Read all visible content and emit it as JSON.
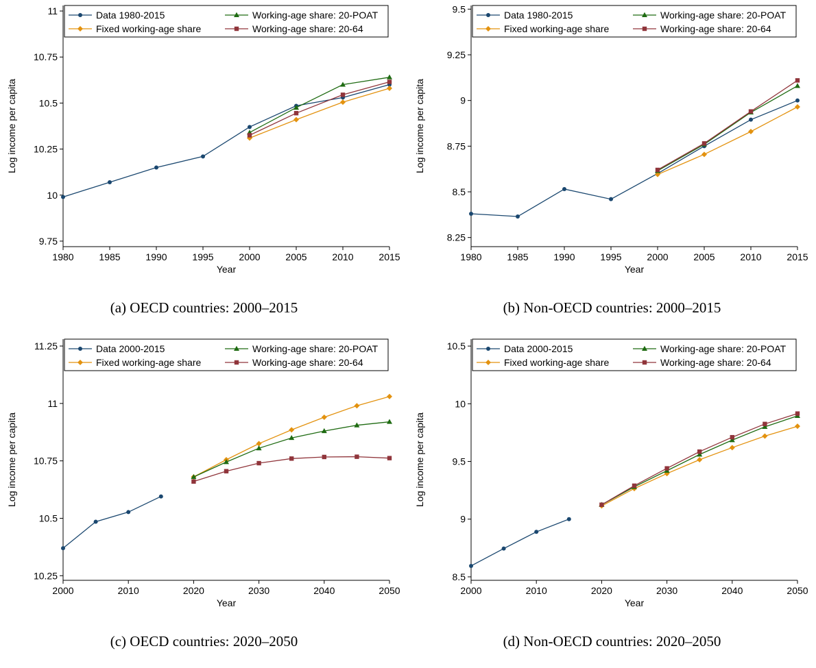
{
  "chart_data": [
    {
      "type": "line",
      "caption": "(a) OECD countries: 2000–2015",
      "xlabel": "Year",
      "ylabel": "Log income per capita",
      "xlim": [
        1980,
        2015
      ],
      "ylim": [
        9.72,
        11.03
      ],
      "xticks": [
        1980,
        1985,
        1990,
        1995,
        2000,
        2005,
        2010,
        2015
      ],
      "yticks": [
        9.75,
        10,
        10.25,
        10.5,
        10.75,
        11
      ],
      "ytick_labels": [
        "9.75",
        "10",
        "10.25",
        "10.5",
        "10.75",
        "11"
      ],
      "legend": "top, two columns",
      "series": [
        {
          "name": "Data 1980-2015",
          "color": "#1a476f",
          "marker": "circle",
          "x": [
            1980,
            1985,
            1990,
            1995,
            2000,
            2005,
            2010,
            2015
          ],
          "values": [
            9.99,
            10.07,
            10.15,
            10.21,
            10.37,
            10.485,
            10.53,
            10.6
          ]
        },
        {
          "name": "Fixed working-age share",
          "color": "#e3920f",
          "marker": "diamond",
          "x": [
            2000,
            2005,
            2010,
            2015
          ],
          "values": [
            10.31,
            10.41,
            10.505,
            10.58
          ]
        },
        {
          "name": "Working-age share: 20-POAT",
          "color": "#1f6b12",
          "marker": "triangle",
          "x": [
            2000,
            2005,
            2010,
            2015
          ],
          "values": [
            10.34,
            10.475,
            10.6,
            10.64
          ]
        },
        {
          "name": "Working-age share: 20-64",
          "color": "#90353b",
          "marker": "square",
          "x": [
            2000,
            2005,
            2010,
            2015
          ],
          "values": [
            10.325,
            10.445,
            10.545,
            10.615
          ]
        }
      ]
    },
    {
      "type": "line",
      "caption": "(b) Non-OECD countries: 2000–2015",
      "xlabel": "Year",
      "ylabel": "Log income per capita",
      "xlim": [
        1980,
        2015
      ],
      "ylim": [
        8.2,
        9.52
      ],
      "xticks": [
        1980,
        1985,
        1990,
        1995,
        2000,
        2005,
        2010,
        2015
      ],
      "yticks": [
        8.25,
        8.5,
        8.75,
        9,
        9.25,
        9.5
      ],
      "ytick_labels": [
        "8.25",
        "8.5",
        "8.75",
        "9",
        "9.25",
        "9.5"
      ],
      "legend": "top, two columns",
      "series": [
        {
          "name": "Data 1980-2015",
          "color": "#1a476f",
          "marker": "circle",
          "x": [
            1980,
            1985,
            1990,
            1995,
            2000,
            2005,
            2010,
            2015
          ],
          "values": [
            8.38,
            8.365,
            8.515,
            8.46,
            8.6,
            8.75,
            8.895,
            9.0
          ]
        },
        {
          "name": "Fixed working-age share",
          "color": "#e3920f",
          "marker": "diamond",
          "x": [
            2000,
            2005,
            2010,
            2015
          ],
          "values": [
            8.595,
            8.705,
            8.83,
            8.965
          ]
        },
        {
          "name": "Working-age share: 20-POAT",
          "color": "#1f6b12",
          "marker": "triangle",
          "x": [
            2000,
            2005,
            2010,
            2015
          ],
          "values": [
            8.615,
            8.76,
            8.935,
            9.08
          ]
        },
        {
          "name": "Working-age share: 20-64",
          "color": "#90353b",
          "marker": "square",
          "x": [
            2000,
            2005,
            2010,
            2015
          ],
          "values": [
            8.62,
            8.765,
            8.94,
            9.11
          ]
        }
      ]
    },
    {
      "type": "line",
      "caption": "(c) OECD countries: 2020–2050",
      "xlabel": "Year",
      "ylabel": "Log income per capita",
      "xlim": [
        2000,
        2050
      ],
      "ylim": [
        10.23,
        11.28
      ],
      "xticks": [
        2000,
        2010,
        2020,
        2030,
        2040,
        2050
      ],
      "yticks": [
        10.25,
        10.5,
        10.75,
        11,
        11.25
      ],
      "ytick_labels": [
        "10.25",
        "10.5",
        "10.75",
        "11",
        "11.25"
      ],
      "legend": "top, two columns",
      "series": [
        {
          "name": "Data 2000-2015",
          "color": "#1a476f",
          "marker": "circle",
          "x": [
            2000,
            2005,
            2010,
            2015
          ],
          "values": [
            10.37,
            10.485,
            10.527,
            10.595
          ]
        },
        {
          "name": "Fixed working-age share",
          "color": "#e3920f",
          "marker": "diamond",
          "x": [
            2020,
            2025,
            2030,
            2035,
            2040,
            2045,
            2050
          ],
          "values": [
            10.68,
            10.755,
            10.825,
            10.885,
            10.94,
            10.99,
            11.03
          ]
        },
        {
          "name": "Working-age share: 20-POAT",
          "color": "#1f6b12",
          "marker": "triangle",
          "x": [
            2020,
            2025,
            2030,
            2035,
            2040,
            2045,
            2050
          ],
          "values": [
            10.68,
            10.745,
            10.805,
            10.85,
            10.88,
            10.905,
            10.92
          ]
        },
        {
          "name": "Working-age share: 20-64",
          "color": "#90353b",
          "marker": "square",
          "x": [
            2020,
            2025,
            2030,
            2035,
            2040,
            2045,
            2050
          ],
          "values": [
            10.66,
            10.705,
            10.74,
            10.76,
            10.767,
            10.768,
            10.762
          ]
        }
      ]
    },
    {
      "type": "line",
      "caption": "(d) Non-OECD countries: 2020–2050",
      "xlabel": "Year",
      "ylabel": "Log income per capita",
      "xlim": [
        2000,
        2050
      ],
      "ylim": [
        8.47,
        10.56
      ],
      "xticks": [
        2000,
        2010,
        2020,
        2030,
        2040,
        2050
      ],
      "yticks": [
        8.5,
        9,
        9.5,
        10,
        10.5
      ],
      "ytick_labels": [
        "8.5",
        "9",
        "9.5",
        "10",
        "10.5"
      ],
      "legend": "top, two columns",
      "series": [
        {
          "name": "Data 2000-2015",
          "color": "#1a476f",
          "marker": "circle",
          "x": [
            2000,
            2005,
            2010,
            2015
          ],
          "values": [
            8.595,
            8.745,
            8.89,
            9.0
          ]
        },
        {
          "name": "Fixed working-age share",
          "color": "#e3920f",
          "marker": "diamond",
          "x": [
            2020,
            2025,
            2030,
            2035,
            2040,
            2045,
            2050
          ],
          "values": [
            9.115,
            9.265,
            9.395,
            9.515,
            9.62,
            9.72,
            9.805
          ]
        },
        {
          "name": "Working-age share: 20-POAT",
          "color": "#1f6b12",
          "marker": "triangle",
          "x": [
            2020,
            2025,
            2030,
            2035,
            2040,
            2045,
            2050
          ],
          "values": [
            9.125,
            9.28,
            9.42,
            9.56,
            9.685,
            9.8,
            9.895
          ]
        },
        {
          "name": "Working-age share: 20-64",
          "color": "#90353b",
          "marker": "square",
          "x": [
            2020,
            2025,
            2030,
            2035,
            2040,
            2045,
            2050
          ],
          "values": [
            9.125,
            9.29,
            9.44,
            9.585,
            9.71,
            9.825,
            9.915
          ]
        }
      ]
    }
  ]
}
